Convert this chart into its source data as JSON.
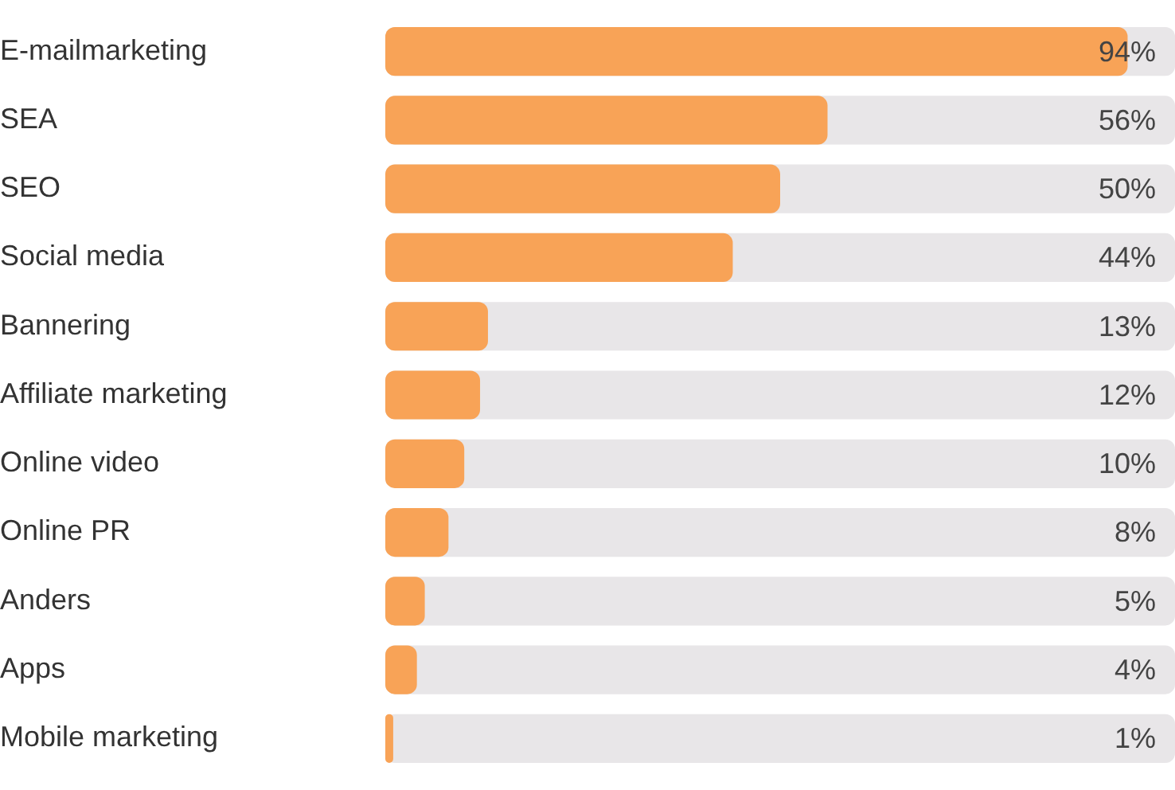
{
  "chart_data": {
    "type": "bar",
    "orientation": "horizontal",
    "categories": [
      "E-mailmarketing",
      "SEA",
      "SEO",
      "Social media",
      "Bannering",
      "Affiliate marketing",
      "Online video",
      "Online PR",
      "Anders",
      "Apps",
      "Mobile marketing"
    ],
    "values": [
      94,
      56,
      50,
      44,
      13,
      12,
      10,
      8,
      5,
      4,
      1
    ],
    "value_labels": [
      "94%",
      "56%",
      "50%",
      "44%",
      "13%",
      "12%",
      "10%",
      "8%",
      "5%",
      "4%",
      "1%"
    ],
    "color": "#f8a357",
    "xlim": [
      0,
      100
    ],
    "tick_labels": "y",
    "legend": false
  }
}
